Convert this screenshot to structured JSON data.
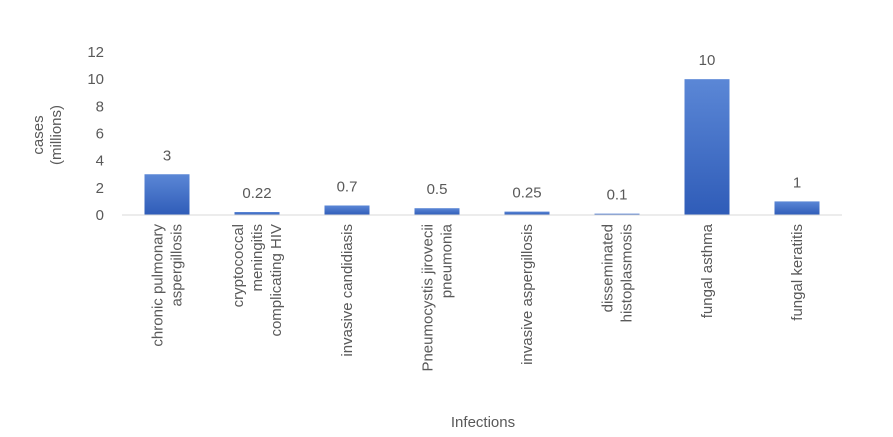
{
  "chart_data": {
    "type": "bar",
    "x_label": "Infections",
    "y_label": "cases\n(millions)",
    "categories": [
      "chronic pulmonary\naspergillosis",
      "cryptococcal\nmeningitis\ncomplicating HIV",
      "invasive candidiasis",
      "Pneumocystis jirovecii\npneumonia",
      "invasive aspergillosis",
      "disseminated\nhistoplasmosis",
      "fungal asthma",
      "fungal keratitis"
    ],
    "values": [
      3,
      0.22,
      0.7,
      0.5,
      0.25,
      0.1,
      10,
      1
    ],
    "color": "#4472c4",
    "ylim": [
      0,
      12
    ],
    "yticks": [
      0,
      2,
      4,
      6,
      8,
      10,
      12
    ],
    "grid": false,
    "data_labels": true
  }
}
